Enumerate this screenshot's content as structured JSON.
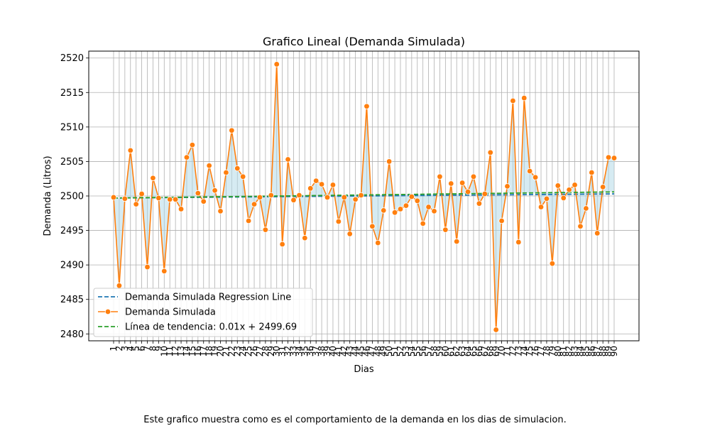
{
  "caption": "Este grafico muestra como es el comportamiento de la demanda en los dias de simulacion.",
  "chart_data": {
    "type": "line",
    "title": "Grafico Lineal (Demanda Simulada)",
    "xlabel": "Dias",
    "ylabel": "Demanda (Litros)",
    "x": [
      1,
      2,
      3,
      4,
      5,
      6,
      7,
      8,
      9,
      10,
      11,
      12,
      13,
      14,
      15,
      16,
      17,
      18,
      19,
      20,
      21,
      22,
      23,
      24,
      25,
      26,
      27,
      28,
      29,
      30,
      31,
      32,
      33,
      34,
      35,
      36,
      37,
      38,
      39,
      40,
      41,
      42,
      43,
      44,
      45,
      46,
      47,
      48,
      49,
      50,
      51,
      52,
      53,
      54,
      55,
      56,
      57,
      58,
      59,
      60,
      61,
      62,
      63,
      64,
      65,
      66,
      67,
      68,
      69,
      70,
      71,
      72,
      73,
      74,
      75,
      76,
      77,
      78,
      79,
      80,
      81,
      82,
      83,
      84,
      85,
      86,
      87,
      88,
      89,
      90
    ],
    "ylim": [
      2479,
      2521
    ],
    "yticks": [
      2480,
      2485,
      2490,
      2495,
      2500,
      2505,
      2510,
      2515,
      2520
    ],
    "grid": true,
    "legend_position": "lower-left",
    "series": [
      {
        "name": "Demanda Simulada Regression Line",
        "style": "dashed",
        "color": "#1f77b4",
        "start": 2499.7,
        "end": 2500.3
      },
      {
        "name": "Demanda Simulada",
        "style": "line-markers",
        "color": "#ff7f0e",
        "values": [
          2499.8,
          2487.0,
          2499.6,
          2506.6,
          2498.8,
          2500.3,
          2489.7,
          2502.6,
          2499.7,
          2489.1,
          2499.5,
          2499.5,
          2498.1,
          2505.6,
          2507.4,
          2500.4,
          2499.2,
          2504.4,
          2500.8,
          2497.8,
          2503.4,
          2509.5,
          2504.0,
          2502.8,
          2496.4,
          2498.8,
          2499.8,
          2495.1,
          2500.1,
          2519.1,
          2493.0,
          2505.3,
          2499.4,
          2500.1,
          2493.9,
          2501.1,
          2502.2,
          2501.7,
          2499.8,
          2501.6,
          2496.3,
          2499.8,
          2494.5,
          2499.5,
          2500.1,
          2513.0,
          2495.6,
          2493.2,
          2497.9,
          2505.0,
          2497.6,
          2498.1,
          2498.6,
          2499.9,
          2499.3,
          2496.0,
          2498.4,
          2497.8,
          2502.8,
          2495.1,
          2501.8,
          2493.4,
          2501.9,
          2500.6,
          2502.8,
          2498.9,
          2500.3,
          2506.3,
          2480.6,
          2496.4,
          2501.4,
          2513.8,
          2493.3,
          2514.2,
          2503.6,
          2502.7,
          2498.4,
          2499.6,
          2490.2,
          2501.5,
          2499.7,
          2500.9,
          2501.6,
          2495.6,
          2498.2,
          2503.4,
          2494.6,
          2501.3,
          2505.6,
          2505.5
        ]
      },
      {
        "name": "Línea de tendencia: 0.01x + 2499.69",
        "style": "dashed",
        "color": "#2ca02c",
        "slope": 0.01,
        "intercept": 2499.69
      }
    ],
    "fill_between": {
      "color": "#add8e6",
      "opacity": 0.5
    }
  }
}
